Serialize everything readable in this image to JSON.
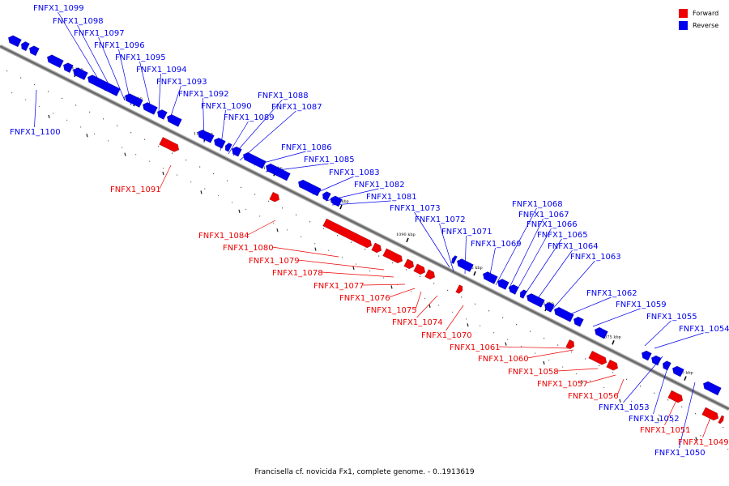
{
  "caption": "Francisella cf. novicida Fx1, complete genome. - 0..1913619",
  "legend": [
    {
      "label": "Forward",
      "color": "#ee0000"
    },
    {
      "label": "Reverse",
      "color": "#0000ee"
    }
  ],
  "colors": {
    "forward": "#ee0000",
    "reverse": "#0000ee",
    "axis": "#777777"
  },
  "ticks": [
    "1115 kbp",
    "1110 kbp",
    "1105 kbp",
    "1100 kbp",
    "1095 kbp",
    "1090 kbp",
    "1085 kbp",
    "1080 kbp",
    "1075 kbp",
    "1070 kbp"
  ],
  "genes": [
    {
      "name": "FNFX1_1099",
      "strand": "reverse"
    },
    {
      "name": "FNFX1_1098",
      "strand": "reverse"
    },
    {
      "name": "FNFX1_1097",
      "strand": "reverse"
    },
    {
      "name": "FNFX1_1096",
      "strand": "reverse"
    },
    {
      "name": "FNFX1_1095",
      "strand": "reverse"
    },
    {
      "name": "FNFX1_1094",
      "strand": "reverse"
    },
    {
      "name": "FNFX1_1093",
      "strand": "reverse"
    },
    {
      "name": "FNFX1_1092",
      "strand": "reverse"
    },
    {
      "name": "FNFX1_1090",
      "strand": "reverse"
    },
    {
      "name": "FNFX1_1089",
      "strand": "reverse"
    },
    {
      "name": "FNFX1_1088",
      "strand": "reverse"
    },
    {
      "name": "FNFX1_1087",
      "strand": "reverse"
    },
    {
      "name": "FNFX1_1100",
      "strand": "reverse"
    },
    {
      "name": "FNFX1_1091",
      "strand": "forward"
    },
    {
      "name": "FNFX1_1086",
      "strand": "reverse"
    },
    {
      "name": "FNFX1_1085",
      "strand": "reverse"
    },
    {
      "name": "FNFX1_1083",
      "strand": "reverse"
    },
    {
      "name": "FNFX1_1082",
      "strand": "reverse"
    },
    {
      "name": "FNFX1_1081",
      "strand": "reverse"
    },
    {
      "name": "FNFX1_1073",
      "strand": "reverse"
    },
    {
      "name": "FNFX1_1072",
      "strand": "reverse"
    },
    {
      "name": "FNFX1_1071",
      "strand": "reverse"
    },
    {
      "name": "FNFX1_1069",
      "strand": "reverse"
    },
    {
      "name": "FNFX1_1068",
      "strand": "reverse"
    },
    {
      "name": "FNFX1_1067",
      "strand": "reverse"
    },
    {
      "name": "FNFX1_1066",
      "strand": "reverse"
    },
    {
      "name": "FNFX1_1065",
      "strand": "reverse"
    },
    {
      "name": "FNFX1_1064",
      "strand": "reverse"
    },
    {
      "name": "FNFX1_1063",
      "strand": "reverse"
    },
    {
      "name": "FNFX1_1062",
      "strand": "reverse"
    },
    {
      "name": "FNFX1_1059",
      "strand": "reverse"
    },
    {
      "name": "FNFX1_1055",
      "strand": "reverse"
    },
    {
      "name": "FNFX1_1054",
      "strand": "reverse"
    },
    {
      "name": "FNFX1_1053",
      "strand": "reverse"
    },
    {
      "name": "FNFX1_1052",
      "strand": "reverse"
    },
    {
      "name": "FNFX1_1050",
      "strand": "reverse"
    },
    {
      "name": "FNFX1_1084",
      "strand": "forward"
    },
    {
      "name": "FNFX1_1080",
      "strand": "forward"
    },
    {
      "name": "FNFX1_1079",
      "strand": "forward"
    },
    {
      "name": "FNFX1_1078",
      "strand": "forward"
    },
    {
      "name": "FNFX1_1077",
      "strand": "forward"
    },
    {
      "name": "FNFX1_1076",
      "strand": "forward"
    },
    {
      "name": "FNFX1_1075",
      "strand": "forward"
    },
    {
      "name": "FNFX1_1074",
      "strand": "forward"
    },
    {
      "name": "FNFX1_1070",
      "strand": "forward"
    },
    {
      "name": "FNFX1_1061",
      "strand": "forward"
    },
    {
      "name": "FNFX1_1060",
      "strand": "forward"
    },
    {
      "name": "FNFX1_1058",
      "strand": "forward"
    },
    {
      "name": "FNFX1_1057",
      "strand": "forward"
    },
    {
      "name": "FNFX1_1056",
      "strand": "forward"
    },
    {
      "name": "FNFX1_1051",
      "strand": "forward"
    },
    {
      "name": "FNFX1_1049",
      "strand": "forward"
    }
  ]
}
